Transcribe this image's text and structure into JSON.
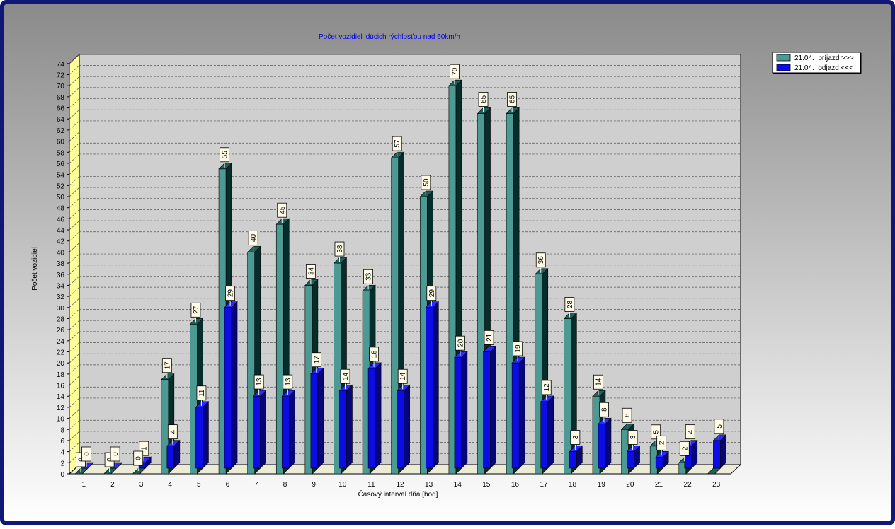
{
  "colors": {
    "border": "#0f1877",
    "bg_top": "#8a8a8a",
    "bg_bottom": "#ffffff",
    "floor": "#ececd6",
    "wall": "#ffff99",
    "series1_front": "#4d9a94",
    "series1_side": "#062d2a",
    "series1_top": "#1f5f59",
    "series2_front": "#0c0ce6",
    "series2_side": "#06067a",
    "series2_top": "#2a2aff",
    "title": "#0000ee"
  },
  "chart_data": {
    "type": "bar",
    "title": "Počet vozidiel idúcich rýchlosťou nad 60km/h",
    "xlabel": "Časový interval dňa [hod]",
    "ylabel": "Počet vozidiel",
    "ylim": [
      0,
      74
    ],
    "ytick_step": 2,
    "grid": true,
    "legend_position": "top-right",
    "categories": [
      "1",
      "2",
      "3",
      "4",
      "5",
      "6",
      "7",
      "8",
      "9",
      "10",
      "11",
      "12",
      "13",
      "14",
      "15",
      "16",
      "17",
      "18",
      "19",
      "20",
      "21",
      "22",
      "23"
    ],
    "series": [
      {
        "name": "21.04.  príjazd >>>",
        "values": [
          0,
          0,
          0,
          17,
          27,
          55,
          40,
          45,
          34,
          38,
          33,
          57,
          50,
          70,
          65,
          65,
          36,
          28,
          14,
          8,
          5,
          2,
          0
        ]
      },
      {
        "name": "21.04.  odjazd <<<",
        "values": [
          0,
          0,
          1,
          4,
          11,
          29,
          13,
          13,
          17,
          14,
          18,
          14,
          29,
          20,
          21,
          19,
          12,
          3,
          8,
          3,
          2,
          4,
          5
        ]
      }
    ],
    "data_labels": [
      [
        "0",
        "0",
        "",
        "17",
        "27",
        "55",
        "40",
        "45",
        "34",
        "38",
        "33",
        "57",
        "50",
        "70",
        "65",
        "65",
        "36",
        "28",
        "14",
        "8",
        "5",
        "2",
        ""
      ],
      [
        "0",
        "0",
        "1",
        "4",
        "11",
        "29",
        "13",
        "13",
        "17",
        "14",
        "18",
        "14",
        "29",
        "20",
        "21",
        "19",
        "12",
        "3",
        "8",
        "3",
        "2",
        "4",
        "5"
      ]
    ],
    "extra_labels": [
      "0"
    ]
  }
}
